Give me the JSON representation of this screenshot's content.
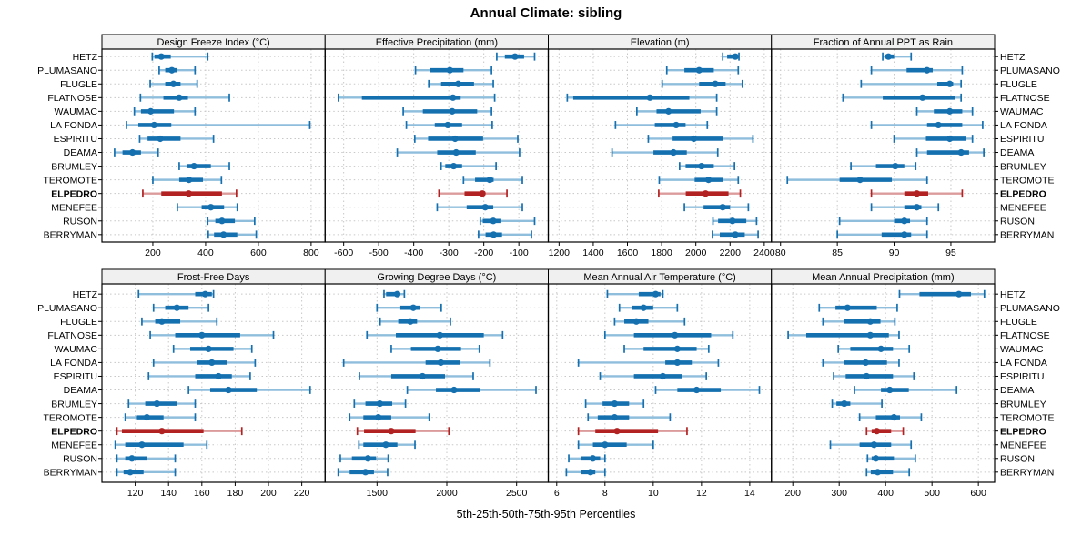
{
  "title": "Annual Climate: sibling",
  "x_axis_caption": "5th-25th-50th-75th-95th Percentiles",
  "stations": [
    "HETZ",
    "PLUMASANO",
    "FLUGLE",
    "FLATNOSE",
    "WAUMAC",
    "LA FONDA",
    "ESPIRITU",
    "DEAMA",
    "BRUMLEY",
    "TEROMOTE",
    "ELPEDRO",
    "MENEFEE",
    "RUSON",
    "BERRYMAN"
  ],
  "highlight_station": "ELPEDRO",
  "colors": {
    "normal": "#1570B0",
    "normal_light": "#8FBEDD",
    "highlight": "#B22222",
    "highlight_light": "#DB9B9B",
    "strip_bg": "#F0F0F0",
    "grid": "#C8C8C8",
    "border": "#000000",
    "text": "#000000"
  },
  "chart_data": {
    "type": "trellis-percentile-intervals",
    "percentiles": [
      5,
      25,
      50,
      75,
      95
    ],
    "grid": {
      "rows": 2,
      "cols": 4
    },
    "panels": [
      {
        "title": "Design Freeze Index (°C)",
        "ticks": [
          200,
          400,
          600,
          800
        ],
        "range": [
          7,
          853
        ],
        "values": {
          "HETZ": [
            198,
            206,
            232,
            268,
            408
          ],
          "PLUMASANO": [
            224,
            247,
            272,
            293,
            360
          ],
          "FLUGLE": [
            190,
            247,
            278,
            305,
            368
          ],
          "FLATNOSE": [
            153,
            240,
            300,
            333,
            490
          ],
          "WAUMAC": [
            130,
            155,
            192,
            280,
            360
          ],
          "LA FONDA": [
            100,
            145,
            205,
            270,
            795
          ],
          "ESPIRITU": [
            150,
            180,
            228,
            305,
            430
          ],
          "DEAMA": [
            55,
            85,
            123,
            155,
            220
          ],
          "BRUMLEY": [
            300,
            328,
            356,
            420,
            490
          ],
          "TEROMOTE": [
            200,
            300,
            337,
            390,
            460
          ],
          "ELPEDRO": [
            162,
            232,
            336,
            462,
            517
          ],
          "MENEFEE": [
            293,
            385,
            420,
            470,
            520
          ],
          "RUSON": [
            408,
            437,
            462,
            511,
            586
          ],
          "BERRYMAN": [
            410,
            432,
            468,
            520,
            592
          ]
        }
      },
      {
        "title": "Effective Precipitation (mm)",
        "ticks": [
          -600,
          -500,
          -400,
          -300,
          -200,
          -100
        ],
        "range": [
          -653,
          -16
        ],
        "values": {
          "HETZ": [
            -163,
            -140,
            -111,
            -85,
            -55
          ],
          "PLUMASANO": [
            -395,
            -353,
            -297,
            -258,
            -178
          ],
          "FLUGLE": [
            -357,
            -322,
            -273,
            -228,
            -173
          ],
          "FLATNOSE": [
            -615,
            -548,
            -288,
            -266,
            -169
          ],
          "WAUMAC": [
            -430,
            -374,
            -290,
            -219,
            -178
          ],
          "LA FONDA": [
            -421,
            -340,
            -303,
            -262,
            -176
          ],
          "ESPIRITU": [
            -397,
            -359,
            -282,
            -202,
            -103
          ],
          "DEAMA": [
            -447,
            -333,
            -279,
            -223,
            -98
          ],
          "BRUMLEY": [
            -322,
            -310,
            -286,
            -262,
            -165
          ],
          "TEROMOTE": [
            -258,
            -225,
            -183,
            -172,
            -90
          ],
          "ELPEDRO": [
            -328,
            -255,
            -204,
            -196,
            -134
          ],
          "MENEFEE": [
            -333,
            -249,
            -196,
            -173,
            -90
          ],
          "RUSON": [
            -210,
            -203,
            -173,
            -150,
            -55
          ],
          "BERRYMAN": [
            -215,
            -195,
            -172,
            -148,
            -64
          ]
        }
      },
      {
        "title": "Elevation (m)",
        "ticks": [
          1200,
          1400,
          1600,
          1800,
          2000,
          2200,
          2400
        ],
        "range": [
          1137,
          2442
        ],
        "values": {
          "HETZ": [
            2157,
            2183,
            2231,
            2247,
            2252
          ],
          "PLUMASANO": [
            1830,
            1933,
            2019,
            2105,
            2248
          ],
          "FLUGLE": [
            1803,
            2019,
            2114,
            2174,
            2272
          ],
          "FLATNOSE": [
            1248,
            1283,
            1731,
            1962,
            2122
          ],
          "WAUMAC": [
            1655,
            1770,
            1840,
            2028,
            2122
          ],
          "LA FONDA": [
            1530,
            1760,
            1885,
            1940,
            2067
          ],
          "ESPIRITU": [
            1722,
            1864,
            1988,
            2157,
            2334
          ],
          "DEAMA": [
            1510,
            1752,
            1869,
            1947,
            2128
          ],
          "BRUMLEY": [
            1905,
            1940,
            2033,
            2105,
            2226
          ],
          "TEROMOTE": [
            1786,
            1993,
            2074,
            2157,
            2248
          ],
          "ELPEDRO": [
            1783,
            1941,
            2057,
            2191,
            2260
          ],
          "MENEFEE": [
            1933,
            2045,
            2157,
            2200,
            2307
          ],
          "RUSON": [
            2100,
            2130,
            2214,
            2295,
            2355
          ],
          "BERRYMAN": [
            2097,
            2140,
            2231,
            2286,
            2364
          ]
        }
      },
      {
        "title": "Fraction of Annual PPT as Rain",
        "ticks": [
          80,
          85,
          90,
          95
        ],
        "range": [
          79.2,
          98.85
        ],
        "values": {
          "HETZ": [
            89.0,
            89.2,
            89.5,
            90.0,
            91.5
          ],
          "PLUMASANO": [
            88.0,
            91.1,
            92.9,
            93.4,
            96.0
          ],
          "FLUGLE": [
            87.1,
            93.8,
            94.9,
            95.2,
            95.9
          ],
          "FLATNOSE": [
            85.5,
            89.0,
            92.5,
            95.4,
            95.9
          ],
          "WAUMAC": [
            92.0,
            93.5,
            94.9,
            96.0,
            96.9
          ],
          "LA FONDA": [
            88.0,
            92.9,
            93.9,
            96.0,
            97.8
          ],
          "ESPIRITU": [
            90.0,
            92.8,
            94.9,
            96.3,
            96.9
          ],
          "DEAMA": [
            92.0,
            92.9,
            95.9,
            96.6,
            97.9
          ],
          "BRUMLEY": [
            86.2,
            88.4,
            90.1,
            90.9,
            91.9
          ],
          "TEROMOTE": [
            80.6,
            85.2,
            87.0,
            89.8,
            92.9
          ],
          "ELPEDRO": [
            88.0,
            90.9,
            92.0,
            93.0,
            96.0
          ],
          "MENEFEE": [
            88.0,
            90.9,
            92.0,
            92.4,
            93.9
          ],
          "RUSON": [
            85.2,
            90.0,
            90.9,
            91.4,
            92.9
          ],
          "BERRYMAN": [
            85.0,
            88.9,
            90.9,
            91.5,
            92.9
          ]
        }
      },
      {
        "title": "Frost-Free Days",
        "ticks": [
          120,
          140,
          160,
          180,
          200,
          220
        ],
        "range": [
          100,
          234
        ],
        "values": {
          "HETZ": [
            122,
            156,
            162,
            166,
            167
          ],
          "PLUMASANO": [
            131,
            138,
            145,
            152,
            164
          ],
          "FLUGLE": [
            124,
            132,
            136,
            147,
            169
          ],
          "FLATNOSE": [
            129,
            144,
            160,
            183,
            203
          ],
          "WAUMAC": [
            143,
            153,
            164,
            179,
            190
          ],
          "LA FONDA": [
            131,
            157,
            166,
            175,
            192
          ],
          "ESPIRITU": [
            128,
            156,
            170,
            178,
            189
          ],
          "DEAMA": [
            152,
            165,
            176,
            193,
            225
          ],
          "BRUMLEY": [
            116,
            126,
            133,
            145,
            156
          ],
          "TEROMOTE": [
            114,
            121,
            127,
            137,
            156
          ],
          "ELPEDRO": [
            109,
            112,
            136,
            161,
            184
          ],
          "MENEFEE": [
            108,
            114,
            124,
            149,
            163
          ],
          "RUSON": [
            109,
            114,
            118,
            127,
            144
          ],
          "BERRYMAN": [
            109,
            113,
            117,
            125,
            144
          ]
        }
      },
      {
        "title": "Growing Degree Days (°C)",
        "ticks": [
          1500,
          2000,
          2500
        ],
        "range": [
          1128,
          2727
        ],
        "values": {
          "HETZ": [
            1550,
            1565,
            1645,
            1665,
            1696
          ],
          "PLUMASANO": [
            1500,
            1667,
            1760,
            1810,
            1960
          ],
          "FLUGLE": [
            1522,
            1652,
            1739,
            1787,
            2026
          ],
          "FLATNOSE": [
            1428,
            1635,
            1950,
            2265,
            2400
          ],
          "WAUMAC": [
            1602,
            1743,
            1935,
            2102,
            2233
          ],
          "LA FONDA": [
            1261,
            1848,
            1957,
            2098,
            2309
          ],
          "ESPIRITU": [
            1374,
            1602,
            1826,
            1987,
            2189
          ],
          "DEAMA": [
            1717,
            1922,
            2052,
            2237,
            2639
          ],
          "BRUMLEY": [
            1337,
            1417,
            1520,
            1609,
            1704
          ],
          "TEROMOTE": [
            1304,
            1402,
            1509,
            1602,
            1874
          ],
          "ELPEDRO": [
            1359,
            1407,
            1602,
            1776,
            2015
          ],
          "MENEFEE": [
            1370,
            1402,
            1563,
            1646,
            1772
          ],
          "RUSON": [
            1237,
            1320,
            1435,
            1493,
            1580
          ],
          "BERRYMAN": [
            1222,
            1304,
            1417,
            1478,
            1576
          ]
        }
      },
      {
        "title": "Mean Annual Air Temperature (°C)",
        "ticks": [
          6,
          8,
          10,
          12,
          14
        ],
        "range": [
          5.65,
          14.9
        ],
        "values": {
          "HETZ": [
            8.1,
            9.4,
            10.1,
            10.3,
            10.4
          ],
          "PLUMASANO": [
            8.6,
            9.1,
            9.6,
            10.0,
            11.0
          ],
          "FLUGLE": [
            8.4,
            8.8,
            9.3,
            9.8,
            11.3
          ],
          "FLATNOSE": [
            8.0,
            9.2,
            10.9,
            12.4,
            13.3
          ],
          "WAUMAC": [
            8.8,
            9.6,
            11.0,
            11.8,
            12.3
          ],
          "LA FONDA": [
            6.9,
            10.5,
            11.0,
            11.6,
            12.7
          ],
          "ESPIRITU": [
            7.8,
            9.2,
            10.4,
            11.2,
            12.2
          ],
          "DEAMA": [
            10.1,
            11.0,
            11.8,
            12.8,
            14.4
          ],
          "BRUMLEY": [
            7.2,
            7.9,
            8.4,
            9.0,
            9.6
          ],
          "TEROMOTE": [
            7.3,
            7.7,
            8.4,
            9.0,
            10.7
          ],
          "ELPEDRO": [
            6.9,
            7.6,
            8.5,
            10.2,
            11.4
          ],
          "MENEFEE": [
            6.9,
            7.5,
            8.0,
            8.9,
            10.0
          ],
          "RUSON": [
            6.5,
            7.0,
            7.5,
            7.8,
            8.0
          ],
          "BERRYMAN": [
            6.4,
            7.0,
            7.4,
            7.6,
            8.0
          ]
        }
      },
      {
        "title": "Mean Annual Precipitation (mm)",
        "ticks": [
          200,
          300,
          400,
          500,
          600
        ],
        "range": [
          154,
          635
        ],
        "values": {
          "HETZ": [
            430,
            473,
            558,
            584,
            613
          ],
          "PLUMASANO": [
            257,
            292,
            318,
            381,
            425
          ],
          "FLUGLE": [
            265,
            311,
            367,
            389,
            420
          ],
          "FLATNOSE": [
            190,
            229,
            367,
            407,
            429
          ],
          "WAUMAC": [
            298,
            324,
            390,
            416,
            451
          ],
          "LA FONDA": [
            265,
            311,
            357,
            403,
            429
          ],
          "ESPIRITU": [
            288,
            314,
            359,
            416,
            461
          ],
          "DEAMA": [
            333,
            390,
            409,
            450,
            553
          ],
          "BRUMLEY": [
            285,
            294,
            311,
            324,
            392
          ],
          "TEROMOTE": [
            344,
            379,
            418,
            431,
            477
          ],
          "ELPEDRO": [
            359,
            370,
            381,
            412,
            438
          ],
          "MENEFEE": [
            281,
            344,
            375,
            412,
            455
          ],
          "RUSON": [
            361,
            370,
            379,
            418,
            464
          ],
          "BERRYMAN": [
            359,
            368,
            383,
            416,
            451
          ]
        }
      }
    ]
  }
}
